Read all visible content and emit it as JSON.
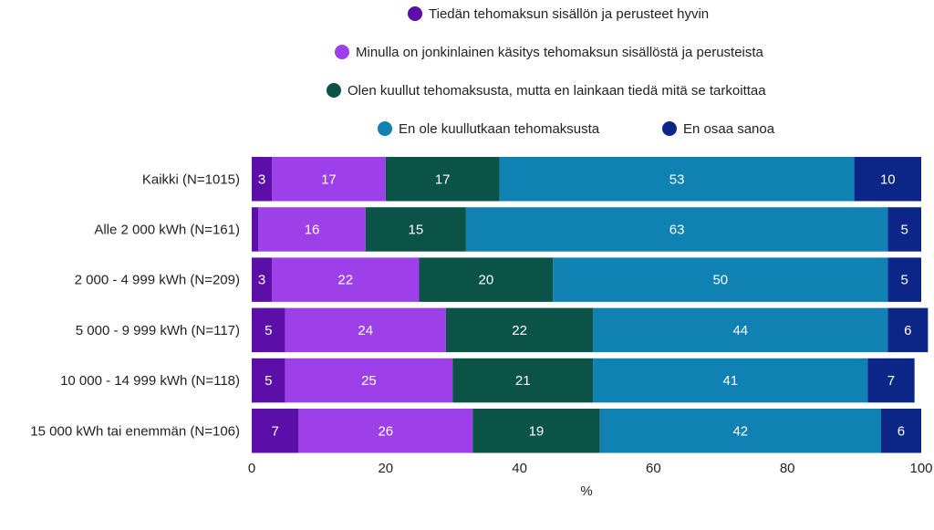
{
  "chart_data": {
    "type": "bar",
    "orientation": "horizontal",
    "stacked": true,
    "title": "",
    "xlabel": "%",
    "ylabel": "",
    "xlim": [
      0,
      100
    ],
    "xticks": [
      "0",
      "20",
      "40",
      "60",
      "80",
      "100"
    ],
    "grid": false,
    "legend_position": "top",
    "categories": [
      "Kaikki (N=1015)",
      "Alle 2 000 kWh (N=161)",
      "2 000 - 4 999 kWh (N=209)",
      "5 000 - 9 999 kWh (N=117)",
      "10 000 - 14 999 kWh (N=118)",
      "15 000 kWh tai enemmän (N=106)"
    ],
    "series": [
      {
        "name": "Tiedän tehomaksun sisällön ja perusteet hyvin",
        "color": "#5b0fa8",
        "values": [
          3,
          1,
          3,
          5,
          5,
          7
        ],
        "labels": [
          "3",
          "",
          "3",
          "5",
          "5",
          "7"
        ]
      },
      {
        "name": "Minulla on jonkinlainen käsitys tehomaksun sisällöstä ja perusteista",
        "color": "#9d40ea",
        "values": [
          17,
          16,
          22,
          24,
          25,
          26
        ],
        "labels": [
          "17",
          "16",
          "22",
          "24",
          "25",
          "26"
        ]
      },
      {
        "name": "Olen kuullut tehomaksusta, mutta en lainkaan tiedä mitä se tarkoittaa",
        "color": "#0b5247",
        "values": [
          17,
          15,
          20,
          22,
          21,
          19
        ],
        "labels": [
          "17",
          "15",
          "20",
          "22",
          "21",
          "19"
        ]
      },
      {
        "name": "En ole kuullutkaan tehomaksusta",
        "color": "#0f82b3",
        "values": [
          53,
          63,
          50,
          44,
          41,
          42
        ],
        "labels": [
          "53",
          "63",
          "50",
          "44",
          "41",
          "42"
        ]
      },
      {
        "name": "En osaa sanoa",
        "color": "#0c2687",
        "values": [
          10,
          5,
          5,
          6,
          7,
          6
        ],
        "labels": [
          "10",
          "5",
          "5",
          "6",
          "7",
          "6"
        ]
      }
    ]
  }
}
